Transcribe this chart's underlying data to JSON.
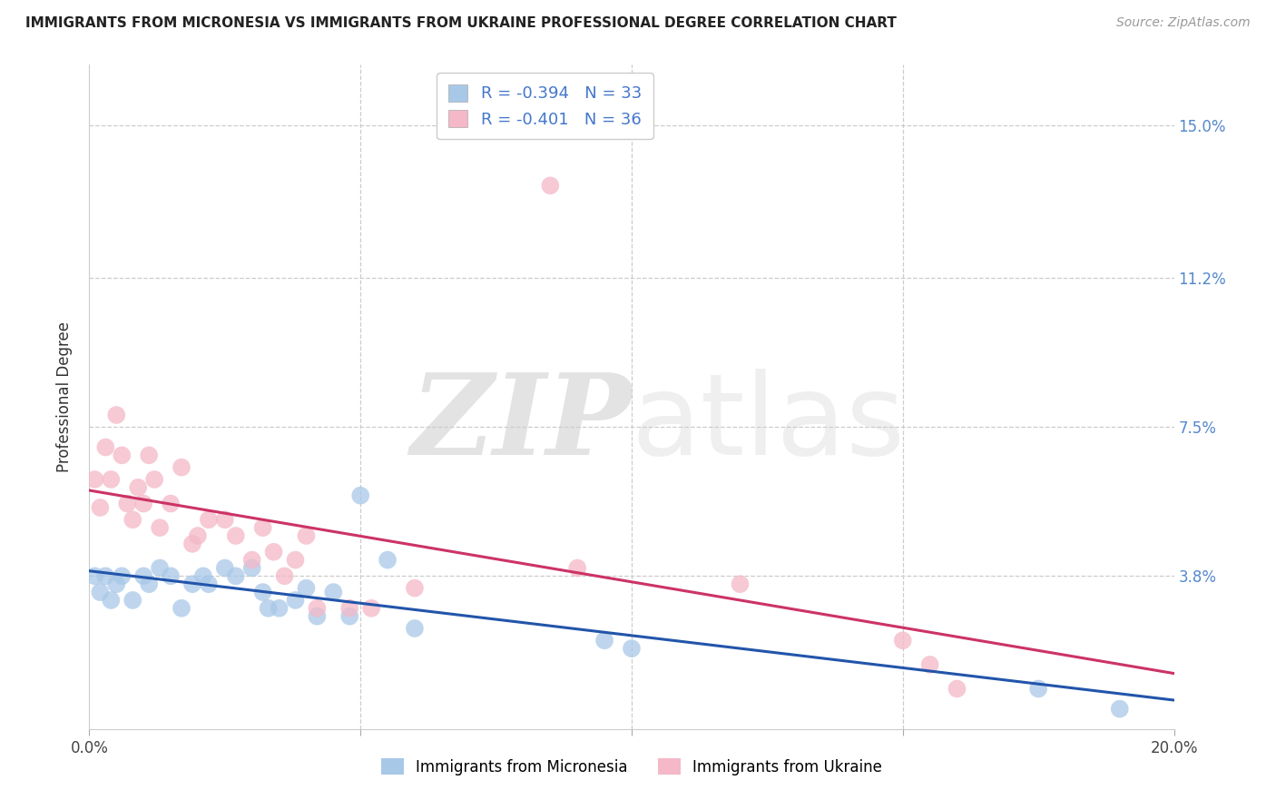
{
  "title": "IMMIGRANTS FROM MICRONESIA VS IMMIGRANTS FROM UKRAINE PROFESSIONAL DEGREE CORRELATION CHART",
  "source": "Source: ZipAtlas.com",
  "ylabel": "Professional Degree",
  "legend_label1": "Immigrants from Micronesia",
  "legend_label2": "Immigrants from Ukraine",
  "R1": -0.394,
  "N1": 33,
  "R2": -0.401,
  "N2": 36,
  "color1": "#a8c8e8",
  "color2": "#f4b8c8",
  "line_color1": "#2255aa",
  "line_color2": "#cc3366",
  "xlim": [
    0.0,
    0.2
  ],
  "ylim": [
    0.0,
    0.165
  ],
  "xticks": [
    0.0,
    0.05,
    0.1,
    0.15,
    0.2
  ],
  "xtick_labels": [
    "0.0%",
    "",
    "",
    "",
    "20.0%"
  ],
  "ytick_positions": [
    0.038,
    0.075,
    0.112,
    0.15
  ],
  "ytick_labels": [
    "3.8%",
    "7.5%",
    "11.2%",
    "15.0%"
  ],
  "watermark_zip": "ZIP",
  "watermark_atlas": "atlas",
  "micronesia_x": [
    0.001,
    0.002,
    0.003,
    0.004,
    0.005,
    0.006,
    0.008,
    0.01,
    0.011,
    0.013,
    0.015,
    0.017,
    0.019,
    0.021,
    0.022,
    0.025,
    0.027,
    0.03,
    0.032,
    0.033,
    0.035,
    0.038,
    0.04,
    0.042,
    0.045,
    0.048,
    0.05,
    0.055,
    0.06,
    0.095,
    0.1,
    0.175,
    0.19
  ],
  "micronesia_y": [
    0.038,
    0.034,
    0.038,
    0.032,
    0.036,
    0.038,
    0.032,
    0.038,
    0.036,
    0.04,
    0.038,
    0.03,
    0.036,
    0.038,
    0.036,
    0.04,
    0.038,
    0.04,
    0.034,
    0.03,
    0.03,
    0.032,
    0.035,
    0.028,
    0.034,
    0.028,
    0.058,
    0.042,
    0.025,
    0.022,
    0.02,
    0.01,
    0.005
  ],
  "ukraine_x": [
    0.001,
    0.002,
    0.003,
    0.004,
    0.005,
    0.006,
    0.007,
    0.008,
    0.009,
    0.01,
    0.011,
    0.012,
    0.013,
    0.015,
    0.017,
    0.019,
    0.02,
    0.022,
    0.025,
    0.027,
    0.03,
    0.032,
    0.034,
    0.036,
    0.038,
    0.04,
    0.042,
    0.048,
    0.052,
    0.06,
    0.085,
    0.09,
    0.12,
    0.15,
    0.155,
    0.16
  ],
  "ukraine_y": [
    0.062,
    0.055,
    0.07,
    0.062,
    0.078,
    0.068,
    0.056,
    0.052,
    0.06,
    0.056,
    0.068,
    0.062,
    0.05,
    0.056,
    0.065,
    0.046,
    0.048,
    0.052,
    0.052,
    0.048,
    0.042,
    0.05,
    0.044,
    0.038,
    0.042,
    0.048,
    0.03,
    0.03,
    0.03,
    0.035,
    0.135,
    0.04,
    0.036,
    0.022,
    0.016,
    0.01
  ]
}
